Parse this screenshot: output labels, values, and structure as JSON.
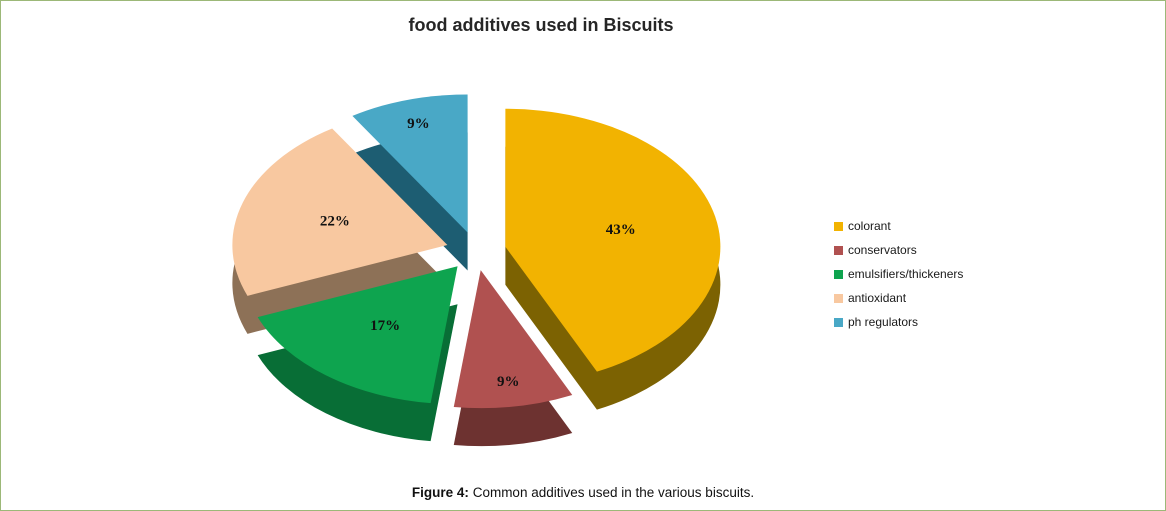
{
  "figure": {
    "caption_label": "Figure 4:",
    "caption_text": " Common additives used in the various biscuits."
  },
  "chart_data": {
    "type": "pie",
    "title": "food additives used in Biscuits",
    "labels": [
      "colorant",
      "conservators",
      "emulsifiers/thickeners",
      "antioxidant",
      "ph regulators"
    ],
    "values": [
      43,
      9,
      17,
      22,
      9
    ],
    "percent_labels": [
      "43%",
      "9%",
      "17%",
      "22%",
      "9%"
    ],
    "colors": [
      "#F2B301",
      "#B05150",
      "#0EA44F",
      "#F8C8A0",
      "#49A8C6"
    ],
    "side_colors": [
      "#7C6202",
      "#6D3230",
      "#086E36",
      "#8D7157",
      "#1D5D72"
    ],
    "start_angle": "top",
    "direction": "clockwise",
    "effect": "3d-exploded",
    "legend_position": "right",
    "background": "#ffffff"
  }
}
